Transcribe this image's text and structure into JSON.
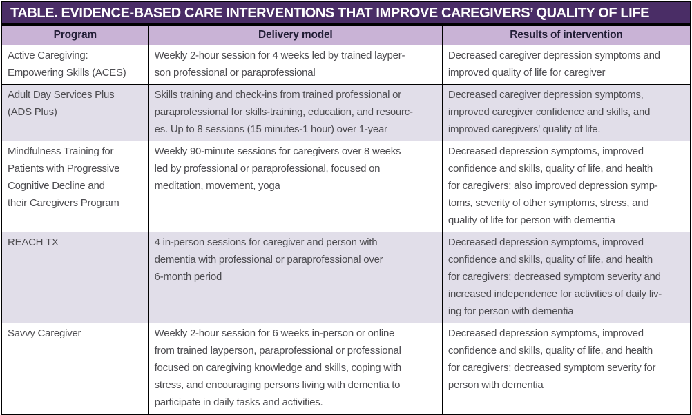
{
  "title": "TABLE. EVIDENCE-BASED CARE INTERVENTIONS THAT IMPROVE CAREGIVERS’ QUALITY OF LIFE",
  "columns": [
    "Program",
    "Delivery model",
    "Results of intervention"
  ],
  "rows": [
    {
      "program": "Active Caregiving:\nEmpowering Skills (ACES)",
      "delivery": "Weekly 2-hour session for 4 weeks led by trained layper-\nson professional or paraprofessional",
      "results": "Decreased caregiver depression symptoms and\nimproved quality of life for caregiver"
    },
    {
      "program": "Adult Day Services Plus\n(ADS Plus)",
      "delivery": "Skills training and check-ins from trained professional or\nparaprofessional for skills-training, education, and resourc-\nes. Up to 8 sessions (15 minutes-1 hour) over 1-year",
      "results": "Decreased caregiver depression symptoms,\nimproved caregiver confidence and skills, and\nimproved caregivers' quality of life."
    },
    {
      "program": "Mindfulness Training for\nPatients with Progressive\nCognitive Decline and\ntheir Caregivers Program",
      "delivery": "Weekly 90-minute sessions for caregivers over 8 weeks\nled by professional or paraprofessional, focused on\nmeditation, movement, yoga",
      "results": "Decreased depression symptoms, improved\nconfidence and skills, quality of life, and health\nfor caregivers; also improved depression symp-\ntoms, severity of other symptoms, stress, and\nquality of life for person with dementia"
    },
    {
      "program": "REACH TX",
      "delivery": "4 in-person sessions for caregiver and person with\ndementia with professional or paraprofessional over\n6-month period",
      "results": "Decreased depression symptoms, improved\nconfidence and skills, quality of life, and health\nfor caregivers; decreased symptom severity and\nincreased independence for activities of daily liv-\ning for person with dementia"
    },
    {
      "program": "Savvy Caregiver",
      "delivery": "Weekly 2-hour session for 6 weeks in-person or online\nfrom trained layperson, paraprofessional or professional\nfocused on caregiving knowledge and skills, coping with\nstress, and encouraging persons living with dementia to\nparticipate in daily tasks and activities.",
      "results": "Decreased depression symptoms, improved\nconfidence and skills, quality of life, and health\nfor caregivers; decreased symptom severity for\nperson with dementia"
    }
  ],
  "colors": {
    "title_bg": "#4A2D66",
    "title_text": "#FFFFFF",
    "header_bg": "#C9B3D6",
    "header_text": "#211D35",
    "alt_row_bg": "#E1DEE9",
    "row_bg": "#FFFFFF",
    "body_text": "#4D4C50",
    "border": "#000000"
  }
}
